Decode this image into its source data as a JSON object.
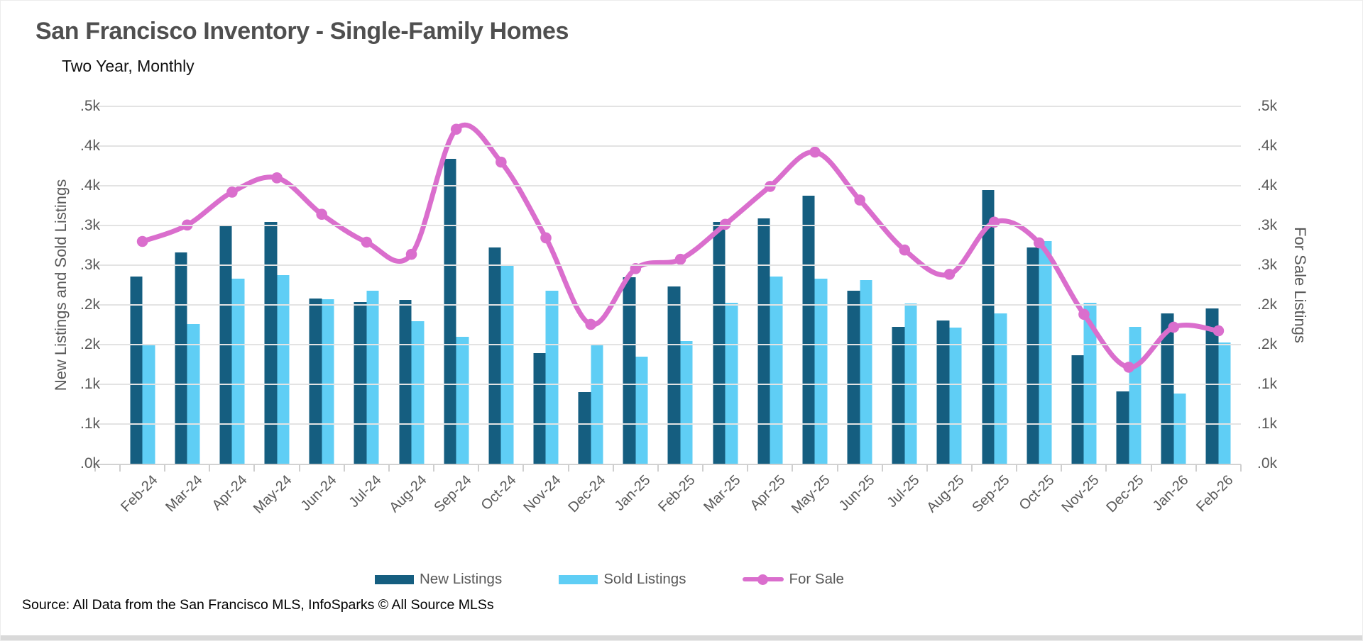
{
  "title": "San Francisco Inventory - Single-Family Homes",
  "subtitle": "Two Year, Monthly",
  "source": "Source: All Data from the San Francisco MLS, InfoSparks © All Source MLSs",
  "legend": {
    "new_listings": "New Listings",
    "sold_listings": "Sold Listings",
    "for_sale": "For Sale"
  },
  "colors": {
    "new_listings": "#155e80",
    "sold_listings": "#5fcef5",
    "for_sale": "#da6ecd",
    "grid": "#e3e3e3",
    "axis": "#d2d2d2",
    "tick_text": "#595959"
  },
  "chart_data": {
    "type": "bar+line",
    "title": "San Francisco Inventory - Single-Family Homes",
    "subtitle": "Two Year, Monthly",
    "categories": [
      "Feb-24",
      "Mar-24",
      "Apr-24",
      "May-24",
      "Jun-24",
      "Jul-24",
      "Aug-24",
      "Sep-24",
      "Oct-24",
      "Nov-24",
      "Dec-24",
      "Jan-25",
      "Feb-25",
      "Mar-25",
      "Apr-25",
      "May-25",
      "Jun-25",
      "Jul-25",
      "Aug-25",
      "Sep-25",
      "Oct-25",
      "Nov-25",
      "Dec-25",
      "Jan-26",
      "Feb-26"
    ],
    "series": [
      {
        "name": "New Listings",
        "type": "bar",
        "values": [
          262,
          296,
          332,
          338,
          231,
          226,
          229,
          427,
          303,
          155,
          100,
          261,
          248,
          338,
          343,
          375,
          242,
          191,
          200,
          383,
          303,
          152,
          101,
          210,
          217
        ]
      },
      {
        "name": "Sold Listings",
        "type": "bar",
        "values": [
          168,
          195,
          259,
          264,
          230,
          242,
          199,
          178,
          278,
          242,
          166,
          150,
          172,
          225,
          262,
          259,
          257,
          224,
          190,
          210,
          312,
          225,
          191,
          98,
          170
        ]
      },
      {
        "name": "For Sale",
        "type": "line",
        "values": [
          311,
          334,
          380,
          400,
          349,
          310,
          293,
          468,
          422,
          316,
          195,
          273,
          286,
          335,
          388,
          436,
          369,
          299,
          265,
          338,
          309,
          209,
          135,
          191,
          186
        ]
      }
    ],
    "ylabel_left": "New Listings and Sold Listings",
    "ylabel_right": "For Sale Listings",
    "ylim": [
      0,
      500
    ],
    "y_gridline_count": 9,
    "y_tick_labels_bottom_to_top": [
      ".0k",
      ".1k",
      ".1k",
      ".2k",
      ".2k",
      ".3k",
      ".3k",
      ".4k",
      ".4k",
      ".5k"
    ],
    "grid": true,
    "legend_position": "bottom",
    "x_label_rotation": -45
  }
}
